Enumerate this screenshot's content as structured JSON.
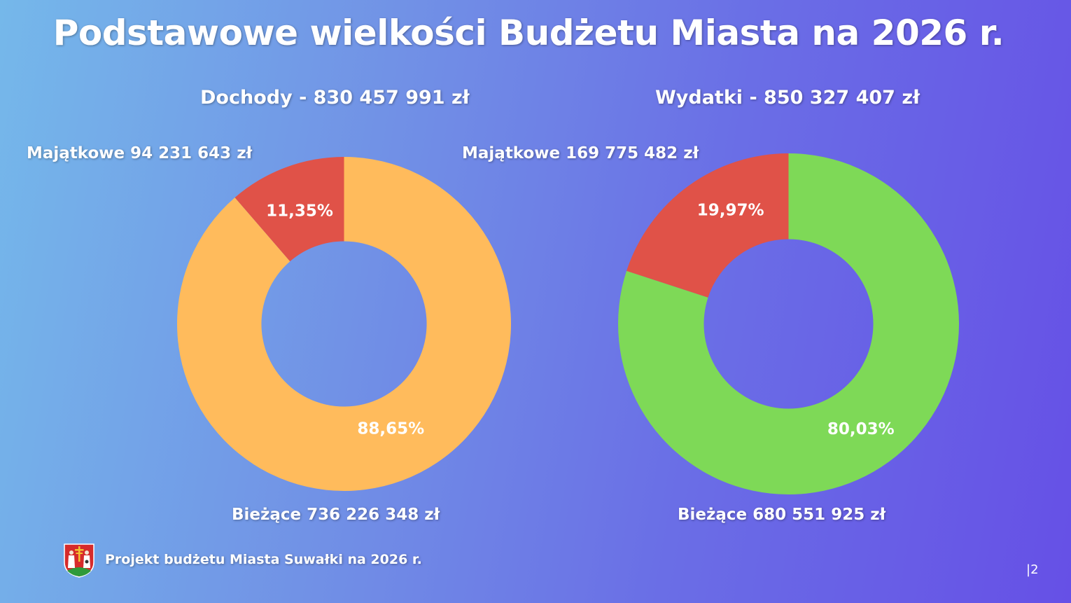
{
  "title": "Podstawowe wielkości Budżetu Miasta na 2026 r.",
  "chart_data": [
    {
      "type": "pie",
      "title": "Dochody - 830 457 991 zł",
      "slices": [
        {
          "label": "Majątkowe  94 231 643 zł",
          "value": 11.35,
          "pct_label": "11,35%",
          "color": "#e05248"
        },
        {
          "label": "Bieżące 736 226 348 zł",
          "value": 88.65,
          "pct_label": "88,65%",
          "color": "#ffbb5c"
        }
      ]
    },
    {
      "type": "pie",
      "title": "Wydatki - 850 327 407 zł",
      "slices": [
        {
          "label": "Majątkowe  169 775 482 zł",
          "value": 19.97,
          "pct_label": "19,97%",
          "color": "#e05248"
        },
        {
          "label": "Bieżące 680 551 925 zł",
          "value": 80.03,
          "pct_label": "80,03%",
          "color": "#7ed957"
        }
      ]
    }
  ],
  "footer": {
    "text": "Projekt budżetu Miasta Suwałki na 2026 r.",
    "page": "|2"
  }
}
